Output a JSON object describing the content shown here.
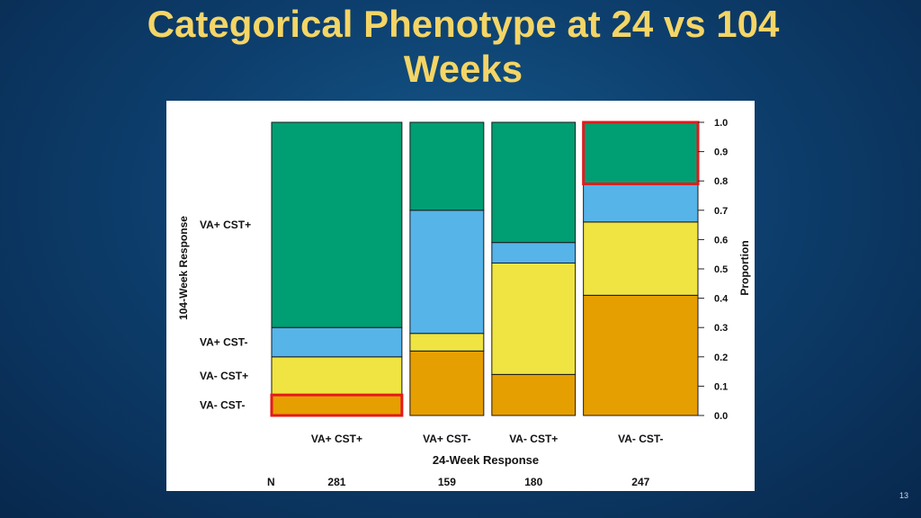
{
  "slide": {
    "title_line1": "Categorical Phenotype at 24 vs 104",
    "title_line2": "Weeks",
    "page_number": "13"
  },
  "chart_data": {
    "type": "mosaic",
    "xlabel": "24-Week Response",
    "ylabel_left": "104-Week Response",
    "ylabel_right": "Proportion",
    "ylim": [
      0,
      1
    ],
    "yticks": [
      "0.0",
      "0.1",
      "0.2",
      "0.3",
      "0.4",
      "0.5",
      "0.6",
      "0.7",
      "0.8",
      "0.9",
      "1.0"
    ],
    "n_label": "N",
    "categories": [
      "VA+ CST+",
      "VA+ CST-",
      "VA- CST+",
      "VA- CST-"
    ],
    "n": [
      "281",
      "159",
      "180",
      "247"
    ],
    "row_labels": [
      "VA+ CST+",
      "VA+ CST-",
      "VA- CST+",
      "VA- CST-"
    ],
    "series": [
      {
        "name": "VA- CST-",
        "color": "#e69f00",
        "values": [
          0.07,
          0.22,
          0.14,
          0.41
        ]
      },
      {
        "name": "VA- CST+",
        "color": "#f0e442",
        "values": [
          0.13,
          0.06,
          0.38,
          0.25
        ]
      },
      {
        "name": "VA+ CST-",
        "color": "#56b4e9",
        "values": [
          0.1,
          0.42,
          0.07,
          0.13
        ]
      },
      {
        "name": "VA+ CST+",
        "color": "#009e73",
        "values": [
          0.7,
          0.3,
          0.41,
          0.21
        ]
      }
    ],
    "highlights": [
      {
        "column": "VA+ CST+",
        "series": "VA- CST-",
        "color": "#e31a1c"
      },
      {
        "column": "VA- CST-",
        "series": "VA+ CST+",
        "color": "#e31a1c"
      }
    ],
    "grid": false
  }
}
